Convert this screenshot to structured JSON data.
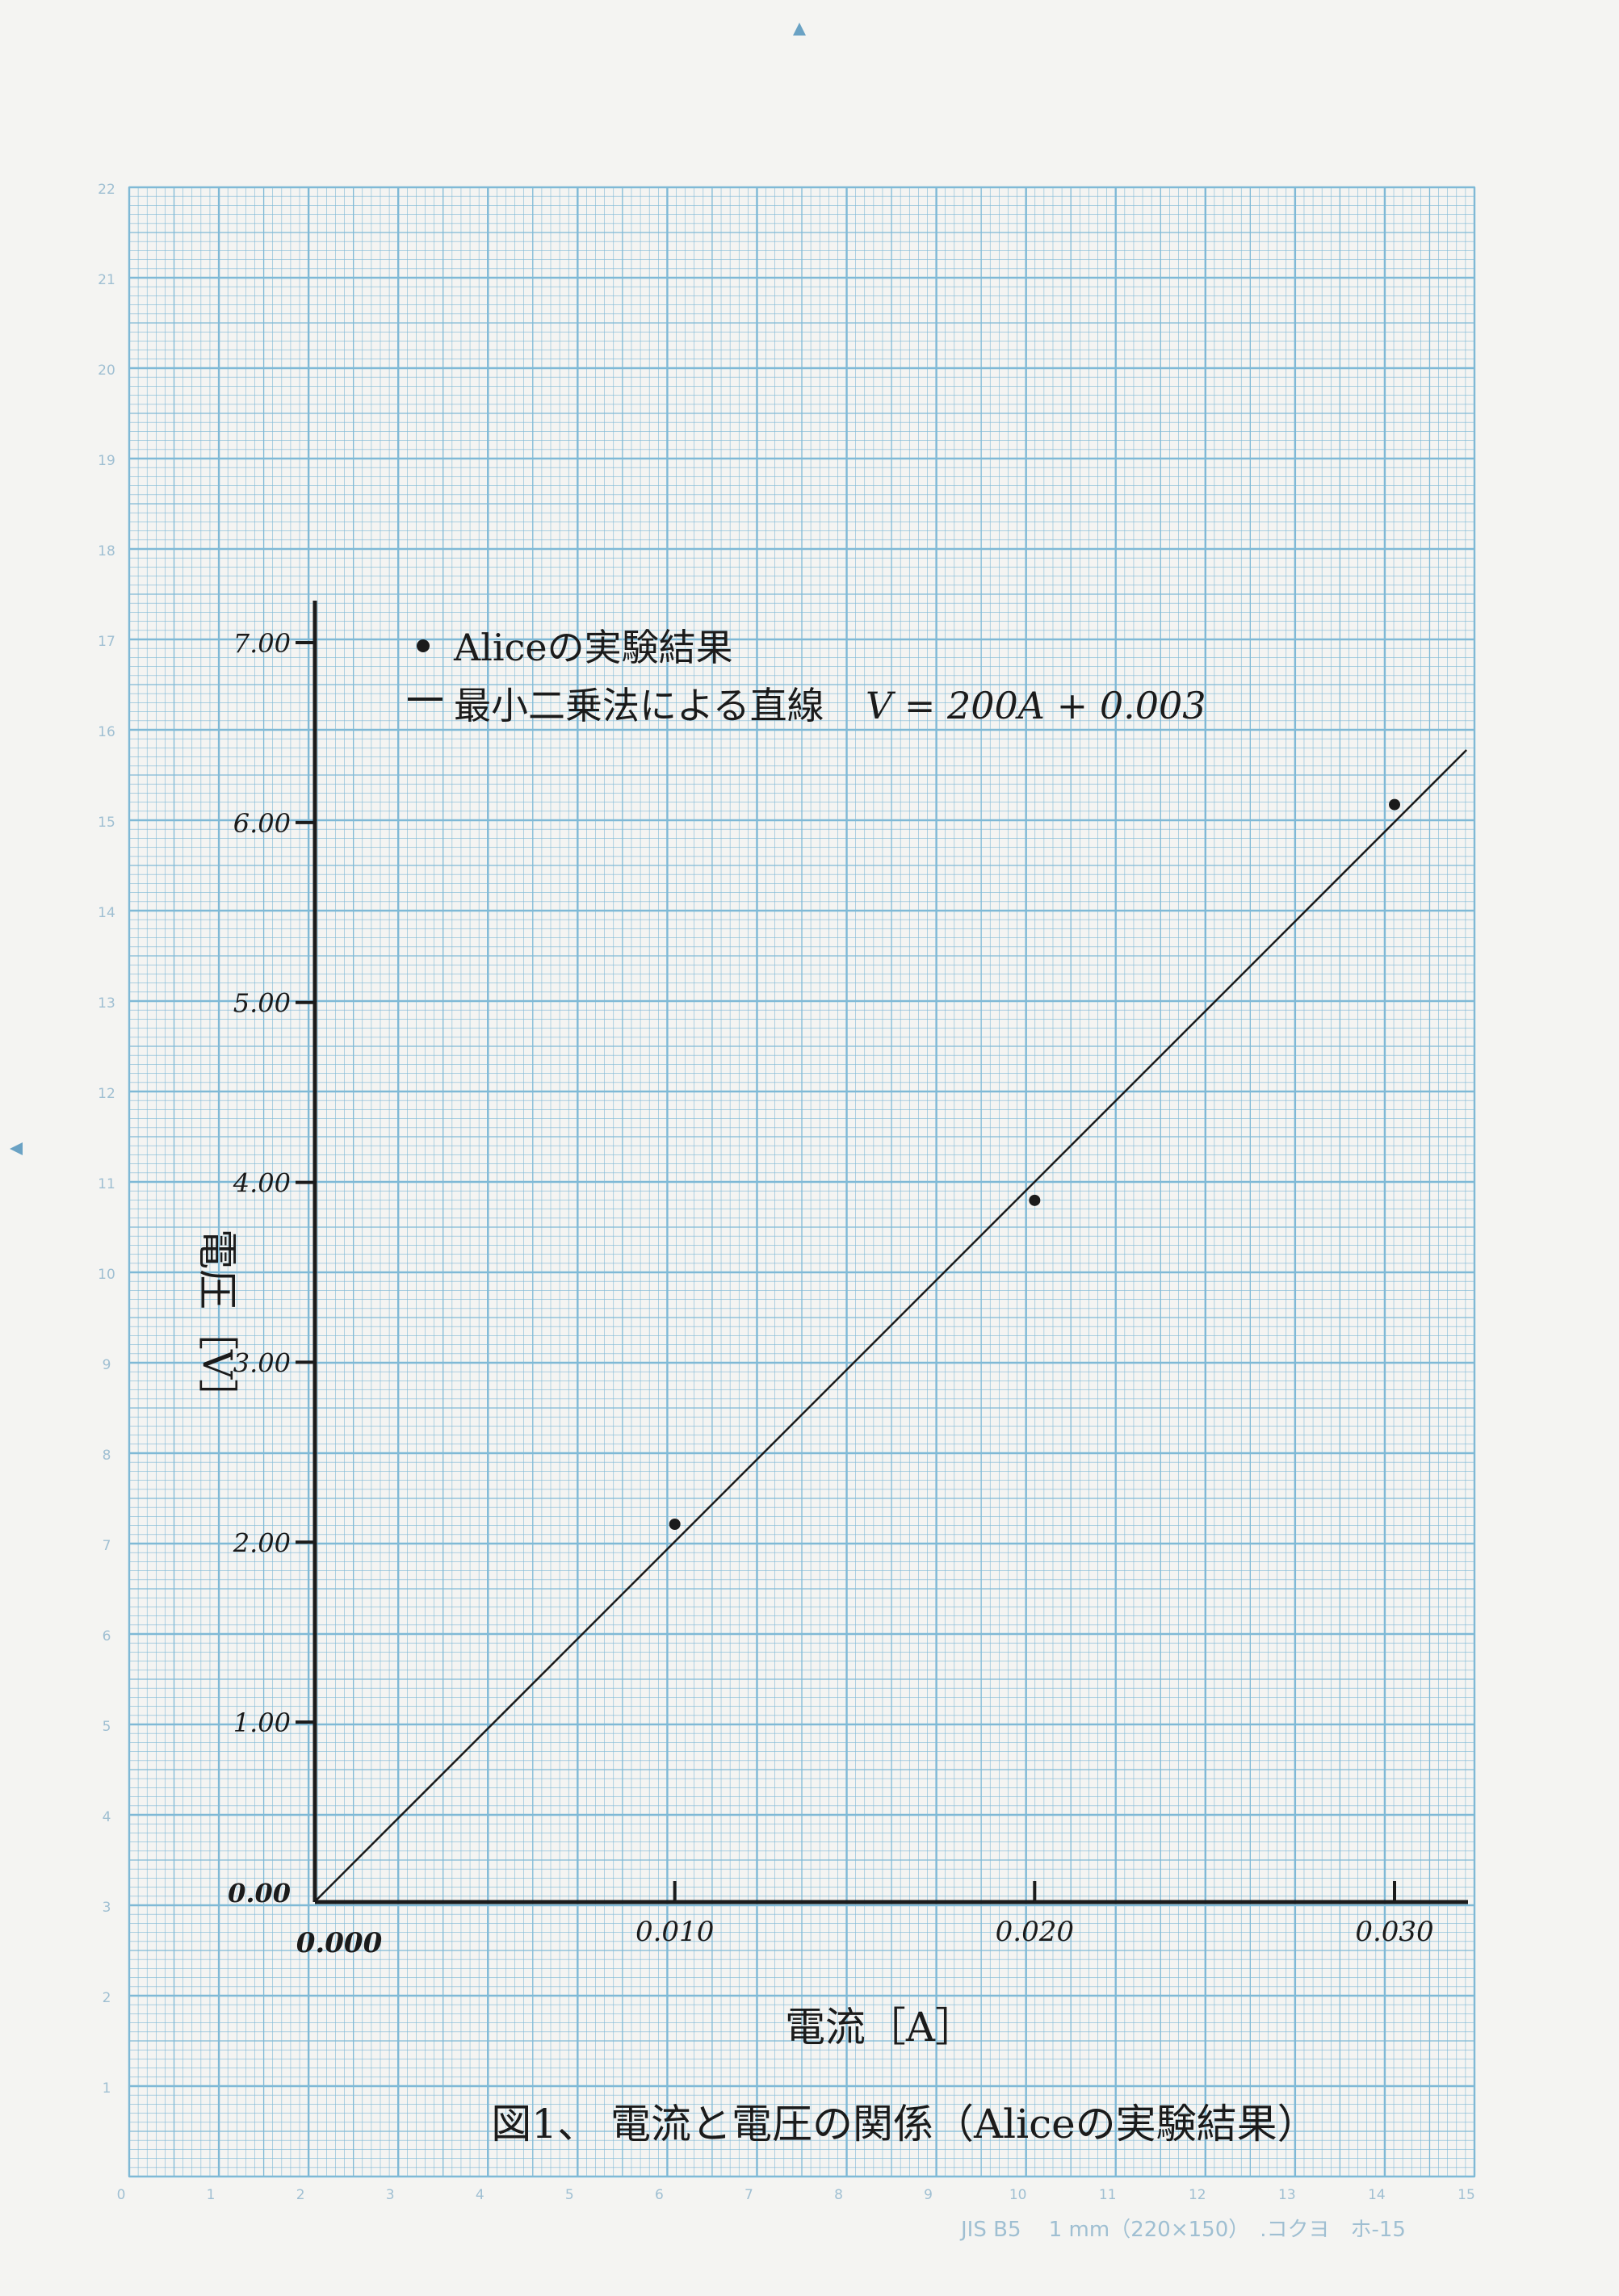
{
  "paper": {
    "grid_color": "#7fb9d6",
    "background": "#f4f4f2",
    "left_scale": [
      "22",
      "21",
      "20",
      "19",
      "18",
      "17",
      "16",
      "15",
      "14",
      "13",
      "12",
      "11",
      "10",
      "9",
      "8",
      "7",
      "6",
      "5",
      "4",
      "3",
      "2",
      "1"
    ],
    "bottom_scale": [
      "0",
      "1",
      "2",
      "3",
      "4",
      "5",
      "6",
      "7",
      "8",
      "9",
      "10",
      "11",
      "12",
      "13",
      "14",
      "15"
    ],
    "footer": "JIS B5　 1 mm（220×150）　.コクヨ　ホ-15"
  },
  "chart_data": {
    "type": "scatter",
    "title": "図1、 電流と電圧の関係（Aliceの実験結果）",
    "xlabel": "電流［A］",
    "ylabel": "電圧［V］",
    "xlim": [
      0,
      0.032
    ],
    "ylim": [
      0,
      7.0
    ],
    "x_ticks": [
      {
        "value": 0.0,
        "label": "0.000"
      },
      {
        "value": 0.01,
        "label": "0.010"
      },
      {
        "value": 0.02,
        "label": "0.020"
      },
      {
        "value": 0.03,
        "label": "0.030"
      }
    ],
    "y_ticks": [
      {
        "value": 0.0,
        "label": "0.00"
      },
      {
        "value": 1.0,
        "label": "1.00"
      },
      {
        "value": 2.0,
        "label": "2.00"
      },
      {
        "value": 3.0,
        "label": "3.00"
      },
      {
        "value": 4.0,
        "label": "4.00"
      },
      {
        "value": 5.0,
        "label": "5.00"
      },
      {
        "value": 6.0,
        "label": "6.00"
      },
      {
        "value": 7.0,
        "label": "7.00"
      }
    ],
    "series": [
      {
        "name": "Aliceの実験結果",
        "kind": "points",
        "color": "#1b1b1b",
        "x": [
          0.01,
          0.02,
          0.03
        ],
        "y": [
          2.1,
          3.9,
          6.1
        ]
      },
      {
        "name": "最小二乗法による直線",
        "kind": "line",
        "color": "#1b1b1b",
        "slope": 200,
        "intercept": 0.003,
        "x_range": [
          0,
          0.032
        ]
      }
    ],
    "equation": "V = 200A + 0.003",
    "legend_position": "top-left",
    "grid": true
  }
}
